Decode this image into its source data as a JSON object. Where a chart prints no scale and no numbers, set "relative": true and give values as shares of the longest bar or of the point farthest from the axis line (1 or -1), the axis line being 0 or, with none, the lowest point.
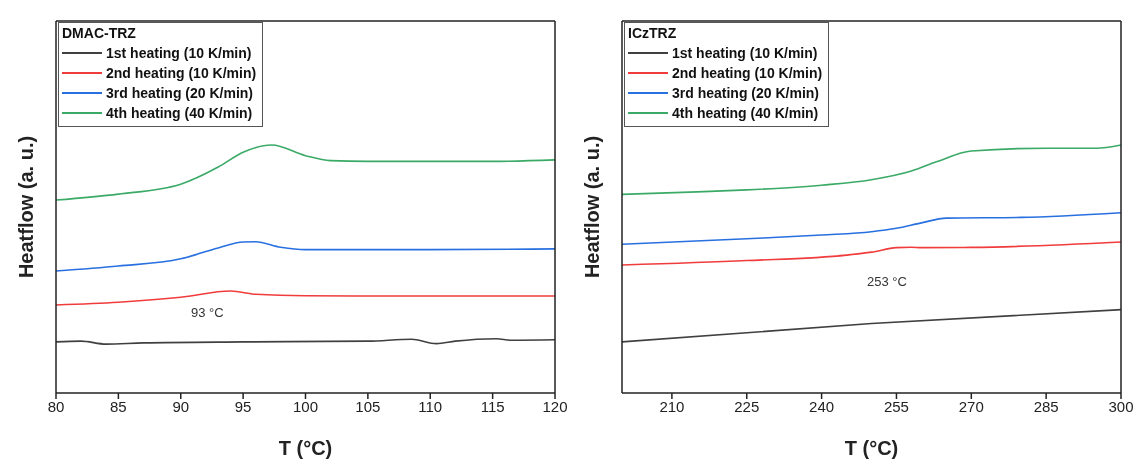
{
  "chart_data": [
    {
      "type": "line",
      "relative": true,
      "xlabel": "T (°C)",
      "ylabel": "Heatflow (a. u.)",
      "legend_title": "DMAC-TRZ",
      "legend": "top left",
      "tick_labels": "x",
      "grid": false,
      "xlim": [
        80,
        120
      ],
      "xticks": [
        80,
        85,
        90,
        95,
        100,
        105,
        110,
        115,
        120
      ],
      "series": [
        {
          "name": "1st heating (10 K/min)",
          "color": "#404040",
          "x": [
            80,
            82,
            84,
            87,
            95,
            105,
            108.5,
            110.5,
            112,
            115.3,
            116.5,
            120
          ],
          "values": [
            0.206,
            0.209,
            0.197,
            0.202,
            0.206,
            0.209,
            0.217,
            0.199,
            0.209,
            0.219,
            0.213,
            0.215
          ]
        },
        {
          "name": "2nd heating (10 K/min)",
          "color": "#f03c3c",
          "x": [
            80,
            85,
            90,
            94,
            96,
            100,
            110,
            120
          ],
          "values": [
            0.355,
            0.366,
            0.386,
            0.411,
            0.398,
            0.392,
            0.391,
            0.391
          ]
        },
        {
          "name": "3rd heating (20 K/min)",
          "color": "#2870e0",
          "x": [
            80,
            85,
            90,
            93,
            95,
            96,
            98,
            100,
            110,
            120
          ],
          "values": [
            0.492,
            0.512,
            0.541,
            0.585,
            0.609,
            0.61,
            0.588,
            0.578,
            0.578,
            0.581
          ]
        },
        {
          "name": "4th heating (40 K/min)",
          "color": "#3aaa66",
          "x": [
            80,
            85,
            90,
            93,
            95,
            97.3,
            100,
            102,
            105,
            110,
            115,
            120
          ],
          "values": [
            0.778,
            0.802,
            0.842,
            0.911,
            0.971,
            1,
            0.957,
            0.937,
            0.934,
            0.934,
            0.934,
            0.94
          ]
        }
      ],
      "annotations": [
        "93 °C"
      ]
    },
    {
      "type": "line",
      "relative": true,
      "xlabel": "T (°C)",
      "ylabel": "Heatflow (a. u.)",
      "legend_title": "ICzTRZ",
      "legend": "top left",
      "tick_labels": "x",
      "grid": false,
      "xlim": [
        200,
        300
      ],
      "xticks": [
        210,
        225,
        240,
        255,
        270,
        285,
        300
      ],
      "series": [
        {
          "name": "1st heating (10 K/min)",
          "color": "#404040",
          "x": [
            200,
            250,
            300
          ],
          "values": [
            0.206,
            0.28,
            0.336
          ]
        },
        {
          "name": "2nd heating (10 K/min)",
          "color": "#f03c3c",
          "x": [
            200,
            225,
            245,
            250,
            255,
            258,
            260,
            270,
            300
          ],
          "values": [
            0.516,
            0.534,
            0.556,
            0.568,
            0.586,
            0.588,
            0.586,
            0.587,
            0.609
          ]
        },
        {
          "name": "3rd heating (20 K/min)",
          "color": "#2870e0",
          "x": [
            200,
            225,
            240,
            250,
            255,
            260,
            265,
            280,
            300
          ],
          "values": [
            0.6,
            0.622,
            0.637,
            0.65,
            0.664,
            0.686,
            0.705,
            0.708,
            0.727
          ]
        },
        {
          "name": "4th heating (40 K/min)",
          "color": "#3aaa66",
          "x": [
            200,
            215,
            225,
            240,
            250,
            258,
            263,
            270,
            285,
            295,
            300
          ],
          "values": [
            0.801,
            0.811,
            0.819,
            0.838,
            0.86,
            0.895,
            0.932,
            0.976,
            0.987,
            0.987,
            1
          ]
        }
      ],
      "annotations": [
        "253 °C"
      ]
    }
  ]
}
